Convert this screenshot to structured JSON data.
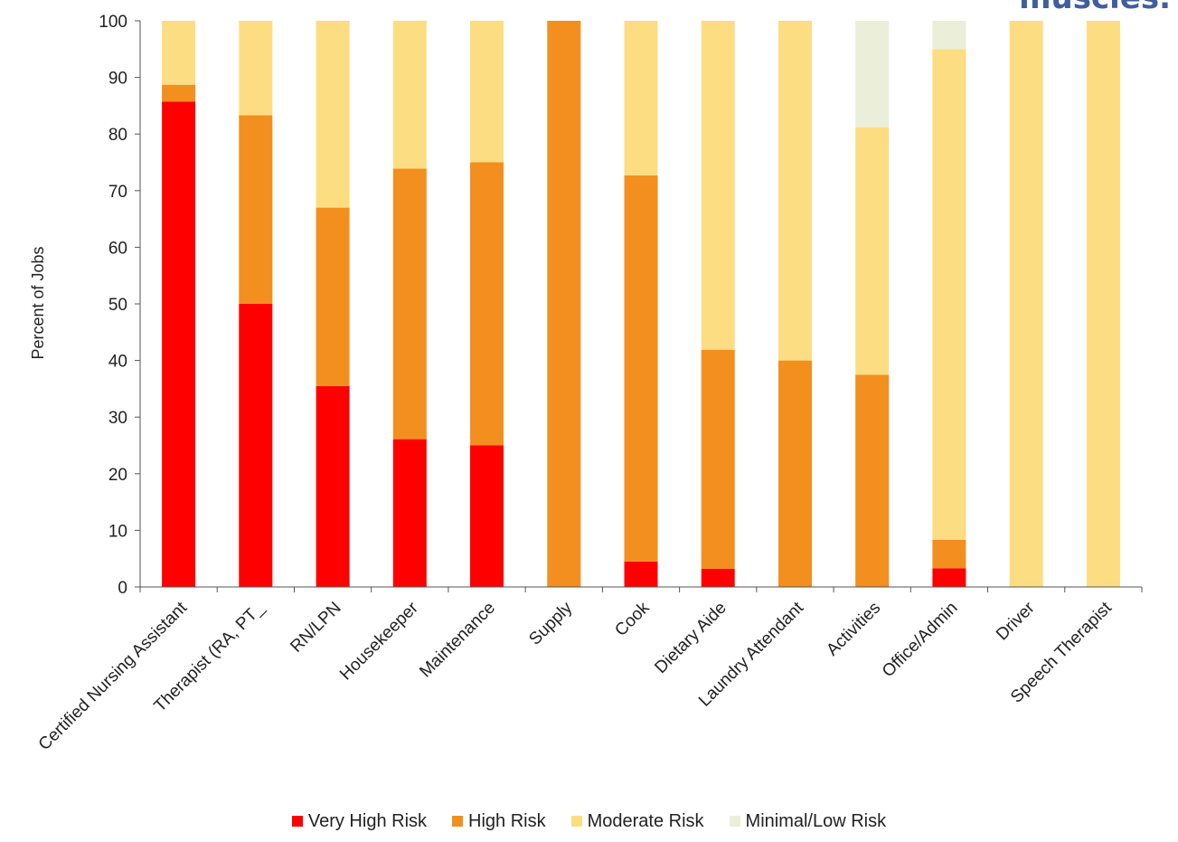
{
  "title_fragment": "muscles.",
  "chart_data": {
    "type": "bar",
    "stacked": true,
    "ylabel": "Percent of Jobs",
    "xlabel": "",
    "ylim": [
      0,
      100
    ],
    "yticks": [
      0,
      10,
      20,
      30,
      40,
      50,
      60,
      70,
      80,
      90,
      100
    ],
    "grid": false,
    "legend_position": "bottom",
    "categories": [
      "Certified Nursing Assistant",
      "Therapist (RA, PT_",
      "RN/LPN",
      "Housekeeper",
      "Maintenance",
      "Supply",
      "Cook",
      "Dietary Aide",
      "Laundry Attendant",
      "Activities",
      "Office/Admin",
      "Driver",
      "Speech Therapist"
    ],
    "series": [
      {
        "name": "Very High Risk",
        "color": "#ff0000",
        "values": [
          85.7,
          50.0,
          35.5,
          26.1,
          25.0,
          0,
          4.5,
          3.2,
          0,
          0,
          3.3,
          0,
          0
        ]
      },
      {
        "name": "High Risk",
        "color": "#f28f1f",
        "values": [
          3.0,
          33.3,
          31.5,
          47.8,
          50.0,
          100,
          68.2,
          38.7,
          40.0,
          37.5,
          5.0,
          0,
          0
        ]
      },
      {
        "name": "Moderate Risk",
        "color": "#fddd82",
        "values": [
          11.3,
          16.7,
          33.0,
          26.1,
          25.0,
          0,
          27.3,
          58.1,
          60.0,
          43.7,
          86.7,
          100,
          100
        ]
      },
      {
        "name": "Minimal/Low Risk",
        "color": "#ebeed8",
        "values": [
          0,
          0,
          0,
          0,
          0,
          0,
          0,
          0,
          0,
          18.8,
          5.0,
          0,
          0
        ]
      }
    ]
  }
}
